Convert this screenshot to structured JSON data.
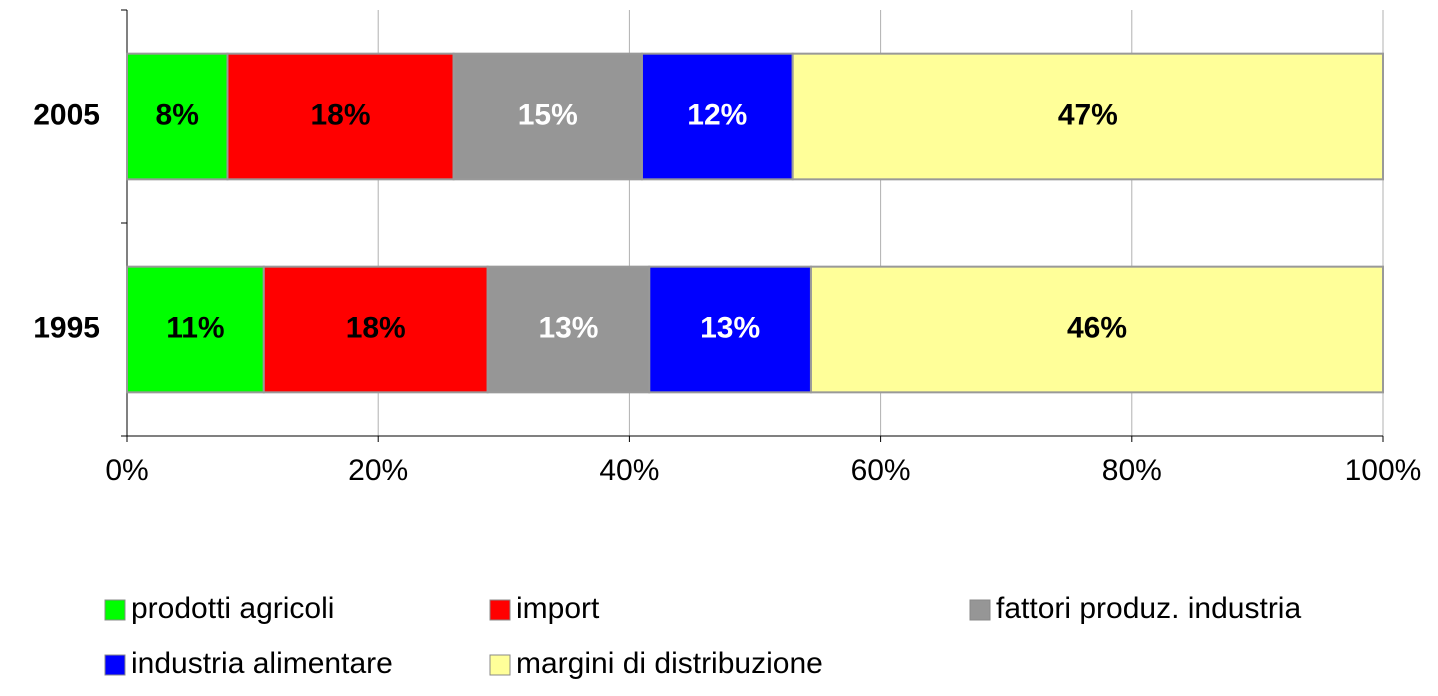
{
  "chart_data": {
    "type": "bar",
    "orientation": "horizontal",
    "stacked": "percent",
    "categories": [
      "2005",
      "1995"
    ],
    "series": [
      {
        "name": "prodotti agricoli",
        "color": "#00ff00",
        "label_color": "#000000",
        "values": [
          8,
          11
        ],
        "value_labels": [
          "8%",
          "11%"
        ]
      },
      {
        "name": "import",
        "color": "#ff0000",
        "label_color": "#000000",
        "values": [
          18,
          18
        ],
        "value_labels": [
          "18%",
          "18%"
        ]
      },
      {
        "name": "fattori produz. industria",
        "color": "#969696",
        "label_color": "#ffffff",
        "values": [
          15,
          13
        ],
        "value_labels": [
          "15%",
          "13%"
        ]
      },
      {
        "name": "industria alimentare",
        "color": "#0000ff",
        "label_color": "#ffffff",
        "values": [
          12,
          13
        ],
        "value_labels": [
          "12%",
          "13%"
        ]
      },
      {
        "name": "margini di distribuzione",
        "color": "#ffff99",
        "label_color": "#000000",
        "values": [
          47,
          46
        ],
        "value_labels": [
          "47%",
          "46%"
        ]
      }
    ],
    "xlim": [
      0,
      100
    ],
    "xticks": [
      {
        "value": 0,
        "label": "0%"
      },
      {
        "value": 20,
        "label": "20%"
      },
      {
        "value": 40,
        "label": "40%"
      },
      {
        "value": 60,
        "label": "60%"
      },
      {
        "value": 80,
        "label": "80%"
      },
      {
        "value": 100,
        "label": "100%"
      }
    ],
    "grid": true,
    "legend": "bottom"
  }
}
